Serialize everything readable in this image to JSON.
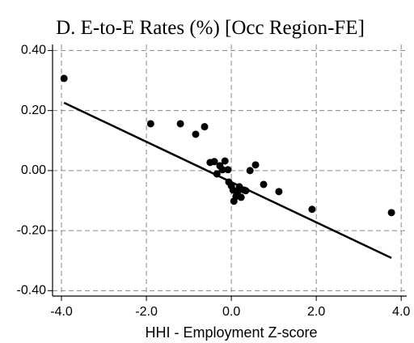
{
  "chart_data": {
    "type": "scatter",
    "title": "D. E-to-E Rates (%) [Occ Region-FE]",
    "x_label": "HHI - Employment Z-score",
    "xlim": [
      -4.21,
      4.13
    ],
    "ylim": [
      -0.418,
      0.42
    ],
    "xticks": [
      {
        "value": -4,
        "label": "-4.0"
      },
      {
        "value": -2,
        "label": "-2.0"
      },
      {
        "value": 0,
        "label": "0.0"
      },
      {
        "value": 2,
        "label": "2.0"
      },
      {
        "value": 4,
        "label": "4.0"
      }
    ],
    "yticks": [
      {
        "value": 0.4,
        "label": "0.40"
      },
      {
        "value": 0.2,
        "label": "0.20"
      },
      {
        "value": 0,
        "label": "0.00"
      },
      {
        "value": -0.2,
        "label": "-0.20"
      },
      {
        "value": -0.4,
        "label": "-0.40"
      }
    ],
    "grid": true,
    "color": "#000000",
    "points": {
      "x": [
        -3.94,
        -1.9,
        -1.2,
        -0.63,
        -0.84,
        -0.5,
        -0.4,
        -0.15,
        -0.34,
        -0.27,
        -0.21,
        -0.08,
        -0.06,
        0.0,
        0.04,
        0.06,
        0.11,
        0.15,
        0.19,
        0.23,
        0.3,
        0.34,
        0.44,
        0.57,
        0.76,
        1.12,
        1.9,
        3.77
      ],
      "y": [
        0.307,
        0.156,
        0.156,
        0.146,
        0.121,
        0.027,
        0.03,
        0.032,
        -0.011,
        0.016,
        0.003,
        0.003,
        -0.038,
        -0.051,
        -0.065,
        -0.102,
        -0.086,
        -0.07,
        -0.054,
        -0.089,
        -0.065,
        -0.067,
        0.0,
        0.019,
        -0.046,
        -0.07,
        -0.129,
        -0.14
      ]
    },
    "fit_line": {
      "x": [
        -3.94,
        3.77
      ],
      "y": [
        0.226,
        -0.291
      ]
    }
  }
}
